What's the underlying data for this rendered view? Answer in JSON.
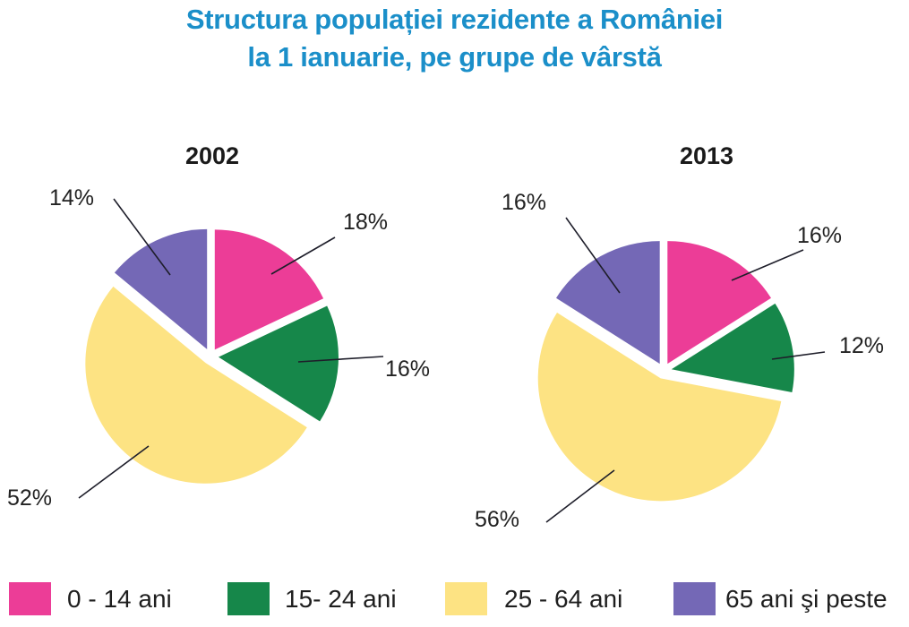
{
  "chart_data": {
    "type": "pie",
    "title": "Structura populației rezidente a României la 1 ianuarie, pe grupe de vârstă",
    "title_lines": [
      "Structura populației rezidente a României",
      "la 1 ianuarie, pe grupe de vârstă"
    ],
    "categories": [
      "0 - 14 ani",
      "15- 24 ani",
      "25 - 64 ani",
      "65 ani şi peste"
    ],
    "colors": [
      "#ec3d97",
      "#16874a",
      "#fde383",
      "#7468b6"
    ],
    "legend_position": "bottom",
    "charts": [
      {
        "year": "2002",
        "values": [
          18,
          16,
          52,
          14
        ],
        "labels": [
          "18%",
          "16%",
          "52%",
          "14%"
        ]
      },
      {
        "year": "2013",
        "values": [
          16,
          12,
          56,
          16
        ],
        "labels": [
          "16%",
          "12%",
          "56%",
          "16%"
        ]
      }
    ]
  }
}
